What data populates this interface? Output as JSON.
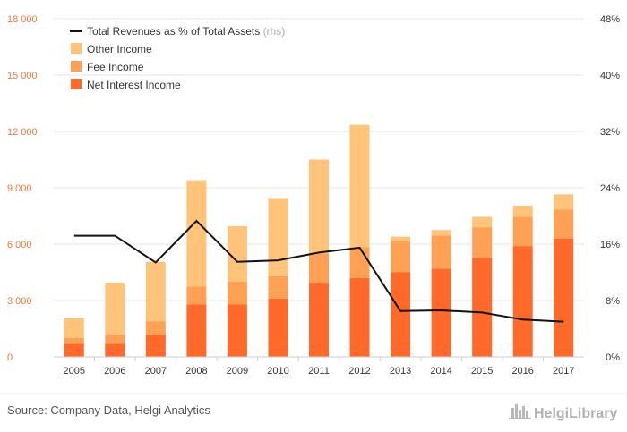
{
  "chart_data": {
    "type": "bar",
    "stacked": true,
    "categories": [
      "2005",
      "2006",
      "2007",
      "2008",
      "2009",
      "2010",
      "2011",
      "2012",
      "2013",
      "2014",
      "2015",
      "2016",
      "2017"
    ],
    "series": [
      {
        "name": "Net Interest Income",
        "color": "#ff6a2b",
        "values": [
          700,
          700,
          1200,
          2800,
          2800,
          3100,
          3950,
          4200,
          4500,
          4700,
          5300,
          5900,
          6300
        ]
      },
      {
        "name": "Fee Income",
        "color": "#ffa155",
        "values": [
          300,
          500,
          700,
          950,
          1200,
          1200,
          1550,
          1650,
          1650,
          1750,
          1600,
          1550,
          1550
        ]
      },
      {
        "name": "Other Income",
        "color": "#ffc47a",
        "values": [
          1050,
          2750,
          3150,
          5650,
          2950,
          4150,
          5000,
          6500,
          250,
          300,
          550,
          600,
          800
        ]
      }
    ],
    "line_series": {
      "name": "Total Revenues as % of Total Assets",
      "suffix": "(rhs)",
      "color": "#111111",
      "axis": "right",
      "values": [
        17.2,
        17.2,
        13.4,
        19.3,
        13.5,
        13.7,
        14.8,
        15.5,
        6.5,
        6.6,
        6.3,
        5.3,
        5.0
      ]
    },
    "y_left": {
      "min": 0,
      "max": 18000,
      "ticks": [
        "0",
        "3 000",
        "6 000",
        "9 000",
        "12 000",
        "15 000",
        "18 000"
      ]
    },
    "y_right": {
      "min": 0,
      "max": 48,
      "ticks": [
        "0%",
        "8%",
        "16%",
        "24%",
        "32%",
        "40%",
        "48%"
      ]
    },
    "grid": true,
    "legend_position": "top-left",
    "source": "Source: Company Data, Helgi Analytics",
    "logo": "HelgiLibrary"
  }
}
